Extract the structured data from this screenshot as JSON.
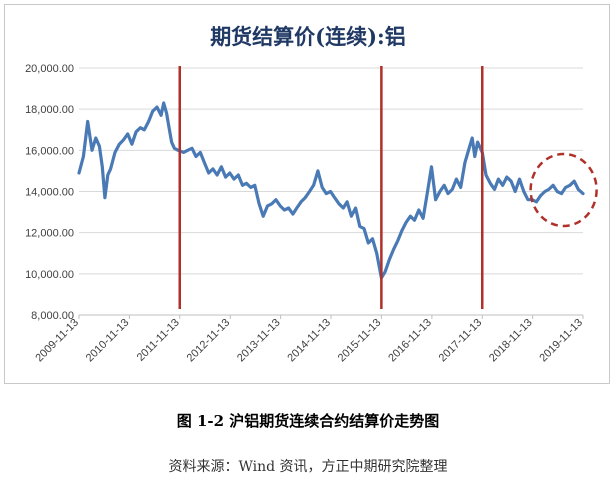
{
  "chart_data": {
    "type": "line",
    "title": "期货结算价(连续):铝",
    "xlabel": "",
    "ylabel": "",
    "ylim": [
      8000,
      20000
    ],
    "y_ticks": [
      "8,000.00",
      "10,000.00",
      "12,000.00",
      "14,000.00",
      "16,000.00",
      "18,000.00",
      "20,000.00"
    ],
    "x_ticks": [
      "2009-11-13",
      "2010-11-13",
      "2011-11-13",
      "2012-11-13",
      "2013-11-13",
      "2014-11-13",
      "2015-11-13",
      "2016-11-13",
      "2017-11-13",
      "2018-11-13",
      "2019-11-13"
    ],
    "grid": true,
    "line_color": "#4a7ab5",
    "marker_color": "#b0302a",
    "circle_color": "#b0302a",
    "series": [
      {
        "x": [
          "2009-11-13",
          "2009-12-15",
          "2010-01-15",
          "2010-02-15",
          "2010-03-15",
          "2010-04-10",
          "2010-05-01",
          "2010-05-20",
          "2010-06-10",
          "2010-06-30",
          "2010-08-01",
          "2010-09-01",
          "2010-10-01",
          "2010-11-01",
          "2010-12-01",
          "2011-01-01",
          "2011-02-01",
          "2011-03-01",
          "2011-04-01",
          "2011-05-01",
          "2011-06-01",
          "2011-07-01",
          "2011-07-20",
          "2011-08-10",
          "2011-08-25",
          "2011-09-15",
          "2011-10-05",
          "2011-11-01",
          "2011-12-10",
          "2012-01-10",
          "2012-02-10",
          "2012-03-10",
          "2012-04-10",
          "2012-05-10",
          "2012-06-10",
          "2012-07-10",
          "2012-08-10",
          "2012-09-10",
          "2012-10-10",
          "2012-11-10",
          "2012-12-10",
          "2013-01-10",
          "2013-02-10",
          "2013-03-10",
          "2013-04-10",
          "2013-05-10",
          "2013-06-10",
          "2013-07-10",
          "2013-08-10",
          "2013-09-10",
          "2013-10-10",
          "2013-11-10",
          "2013-12-10",
          "2014-01-10",
          "2014-02-10",
          "2014-03-10",
          "2014-04-10",
          "2014-05-10",
          "2014-06-10",
          "2014-07-10",
          "2014-08-10",
          "2014-09-10",
          "2014-10-10",
          "2014-11-10",
          "2014-12-10",
          "2015-01-10",
          "2015-02-10",
          "2015-03-10",
          "2015-04-10",
          "2015-05-10",
          "2015-06-10",
          "2015-07-10",
          "2015-08-10",
          "2015-09-10",
          "2015-10-10",
          "2015-11-13",
          "2015-12-10",
          "2016-01-10",
          "2016-02-10",
          "2016-03-10",
          "2016-04-10",
          "2016-05-10",
          "2016-06-10",
          "2016-07-10",
          "2016-08-10",
          "2016-09-10",
          "2016-10-10",
          "2016-11-10",
          "2016-12-10",
          "2017-01-10",
          "2017-02-10",
          "2017-03-10",
          "2017-04-10",
          "2017-05-10",
          "2017-06-10",
          "2017-07-10",
          "2017-08-10",
          "2017-09-01",
          "2017-09-20",
          "2017-10-10",
          "2017-11-13",
          "2017-12-10",
          "2018-01-10",
          "2018-02-10",
          "2018-03-10",
          "2018-04-10",
          "2018-05-10",
          "2018-06-10",
          "2018-07-10",
          "2018-08-10",
          "2018-09-10",
          "2018-10-10",
          "2018-11-10",
          "2018-12-10",
          "2019-01-10",
          "2019-02-10",
          "2019-03-10",
          "2019-04-10",
          "2019-05-10",
          "2019-06-10",
          "2019-07-10",
          "2019-08-10",
          "2019-09-10",
          "2019-10-10",
          "2019-11-13"
        ],
        "y": [
          14900,
          15700,
          17400,
          16000,
          16600,
          16200,
          15200,
          13700,
          14800,
          15100,
          15900,
          16300,
          16500,
          16800,
          16300,
          16900,
          17100,
          17000,
          17400,
          17900,
          18100,
          17700,
          18300,
          17800,
          17200,
          16400,
          16100,
          16000,
          15900,
          16000,
          16100,
          15700,
          15900,
          15400,
          14900,
          15100,
          14800,
          15200,
          14700,
          14900,
          14600,
          14800,
          14300,
          14400,
          14200,
          14300,
          13400,
          12800,
          13300,
          13400,
          13600,
          13300,
          13100,
          13200,
          12900,
          13200,
          13500,
          13700,
          14000,
          14300,
          15000,
          14200,
          13900,
          14000,
          13700,
          13400,
          13200,
          13500,
          12800,
          13200,
          12300,
          12200,
          11500,
          11700,
          11000,
          9800,
          10100,
          10700,
          11200,
          11600,
          12100,
          12500,
          12800,
          12600,
          13100,
          12700,
          13900,
          15200,
          13600,
          14000,
          14300,
          13900,
          14100,
          14600,
          14200,
          15400,
          16100,
          16600,
          15700,
          16400,
          15900,
          14800,
          14400,
          14100,
          14600,
          14300,
          14700,
          14500,
          14000,
          14600,
          14000,
          13600,
          13600,
          13500,
          13800,
          14000,
          14100,
          14300,
          14000,
          13900,
          14200,
          14300,
          14500,
          14100,
          13900
        ]
      }
    ],
    "markers": [
      "2011-11-13",
      "2015-11-13",
      "2017-11-13"
    ]
  },
  "figure": {
    "caption": "图 1-2 沪铝期货连续合约结算价走势图",
    "source": "资料来源：Wind 资讯，方正中期研究院整理"
  }
}
